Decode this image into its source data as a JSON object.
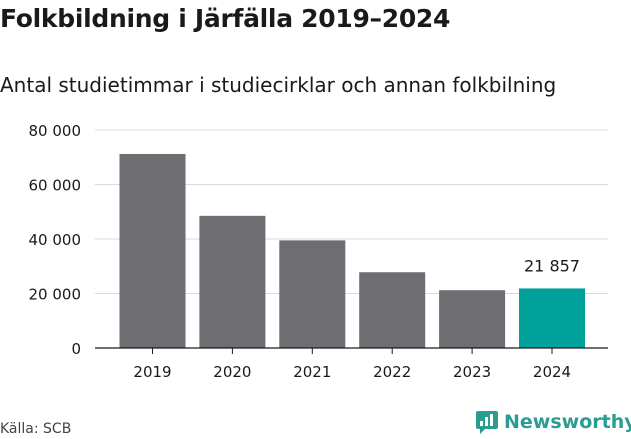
{
  "header": {
    "title": "Folkbildning i Järfälla 2019–2024",
    "subtitle": "Antal studietimmar i studiecirklar och annan folkbilning"
  },
  "footer": {
    "source": "Källa: SCB",
    "brand": "Newsworthy",
    "brand_color": "#2a9d90"
  },
  "chart_data": {
    "type": "bar",
    "title": "Folkbildning i Järfälla 2019–2024",
    "subtitle": "Antal studietimmar i studiecirklar och annan folkbilning",
    "xlabel": "",
    "ylabel": "",
    "categories": [
      "2019",
      "2020",
      "2021",
      "2022",
      "2023",
      "2024"
    ],
    "values": [
      71200,
      48500,
      39500,
      27800,
      21200,
      21857
    ],
    "ylim": [
      0,
      80000
    ],
    "yticks": [
      0,
      20000,
      40000,
      60000,
      80000
    ],
    "ytick_labels": [
      "0",
      "20 000",
      "40 000",
      "60 000",
      "80 000"
    ],
    "data_labels": [
      null,
      null,
      null,
      null,
      null,
      "21 857"
    ],
    "grid": true,
    "colors": {
      "bar": "#6e6d72",
      "highlight": "#00a19a",
      "grid": "#d9d9d9",
      "axis": "#1a1a1a"
    },
    "highlight_index": 5
  }
}
